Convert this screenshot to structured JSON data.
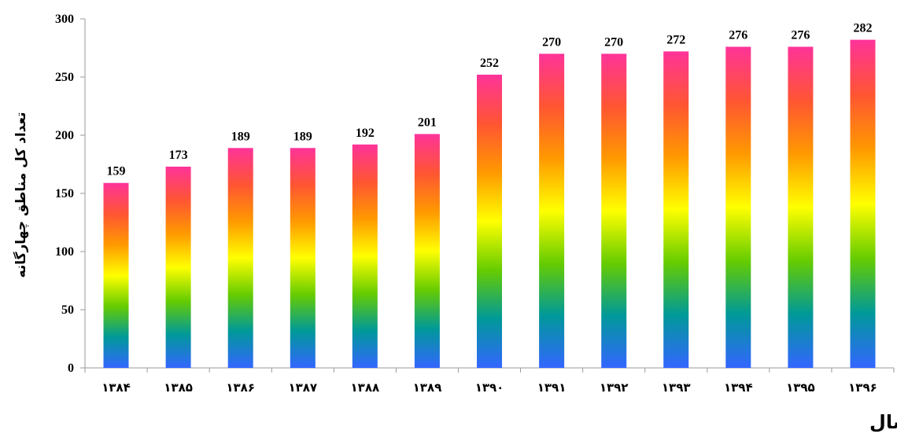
{
  "chart_data": {
    "type": "bar",
    "title": "",
    "xlabel": "سال",
    "ylabel": "تعداد کل مناطق چهارگانه",
    "categories": [
      "۱۳۸۴",
      "۱۳۸۵",
      "۱۳۸۶",
      "۱۳۸۷",
      "۱۳۸۸",
      "۱۳۸۹",
      "۱۳۹۰",
      "۱۳۹۱",
      "۱۳۹۲",
      "۱۳۹۳",
      "۱۳۹۴",
      "۱۳۹۵",
      "۱۳۹۶"
    ],
    "values": [
      159,
      173,
      189,
      189,
      192,
      201,
      252,
      270,
      270,
      272,
      276,
      276,
      282
    ],
    "data_labels": [
      "159",
      "173",
      "189",
      "189",
      "192",
      "201",
      "252",
      "270",
      "270",
      "272",
      "276",
      "276",
      "282"
    ],
    "ylim": [
      0,
      300
    ],
    "yticks": [
      0,
      50,
      100,
      150,
      200,
      250,
      300
    ],
    "ytick_labels": [
      "0",
      "50",
      "100",
      "150",
      "200",
      "250",
      "300"
    ],
    "grid": false,
    "legend": "none",
    "bar_gradient": [
      "#3366ff",
      "#009999",
      "#66cc00",
      "#ffff00",
      "#ff9900",
      "#ff5533",
      "#ff3399"
    ]
  }
}
